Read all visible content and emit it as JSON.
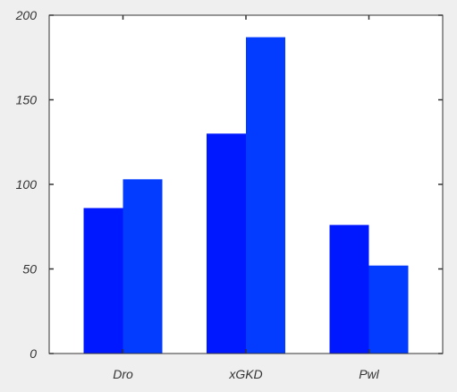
{
  "chart_data": {
    "type": "bar",
    "categories": [
      "Dro",
      "xGKD",
      "Pwl"
    ],
    "series": [
      {
        "values": [
          86,
          130,
          76
        ],
        "color": "#0018ff"
      },
      {
        "values": [
          103,
          187,
          52
        ],
        "color": "#033bff"
      }
    ],
    "ylim": [
      0,
      200
    ],
    "yticks": [
      0,
      50,
      100,
      150,
      200
    ],
    "title": "",
    "xlabel": "",
    "ylabel": "",
    "grid": false,
    "background": "#ffffff",
    "figure_background": "#efefef",
    "axis_color": "#333333"
  }
}
